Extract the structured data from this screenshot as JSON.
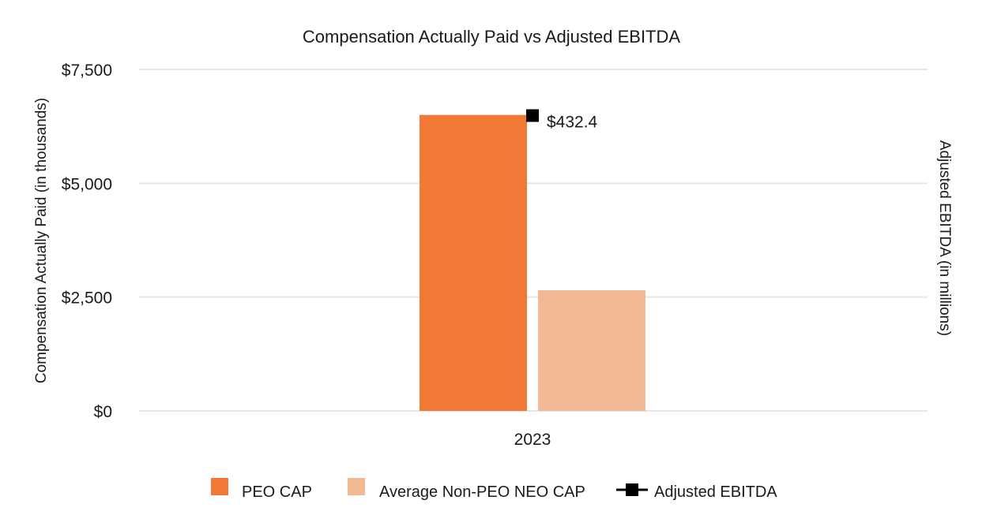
{
  "chart_data": {
    "type": "bar",
    "title": "Compensation Actually Paid vs Adjusted EBITDA",
    "categories": [
      "2023"
    ],
    "series": [
      {
        "name": "PEO CAP",
        "axis": "left",
        "color": "#f27935",
        "values": [
          6500
        ]
      },
      {
        "name": "Average Non-PEO NEO CAP",
        "axis": "left",
        "color": "#f2b994",
        "values": [
          2650
        ]
      },
      {
        "name": "Adjusted EBITDA",
        "axis": "right",
        "type": "line-marker",
        "color": "#000000",
        "values": [
          432.4
        ],
        "labels": [
          "$432.4"
        ]
      }
    ],
    "ylabel": "Compensation Actually Paid (in thousands)",
    "y2label": "Adjusted EBITDA (in millions)",
    "ylim": [
      0,
      7500
    ],
    "yticks": [
      {
        "value": 0,
        "label": "$0"
      },
      {
        "value": 2500,
        "label": "$2,500"
      },
      {
        "value": 5000,
        "label": "$5,000"
      },
      {
        "value": 7500,
        "label": "$7,500"
      }
    ],
    "y2lim": [
      0,
      500
    ],
    "grid": true,
    "legend_position": "bottom"
  }
}
